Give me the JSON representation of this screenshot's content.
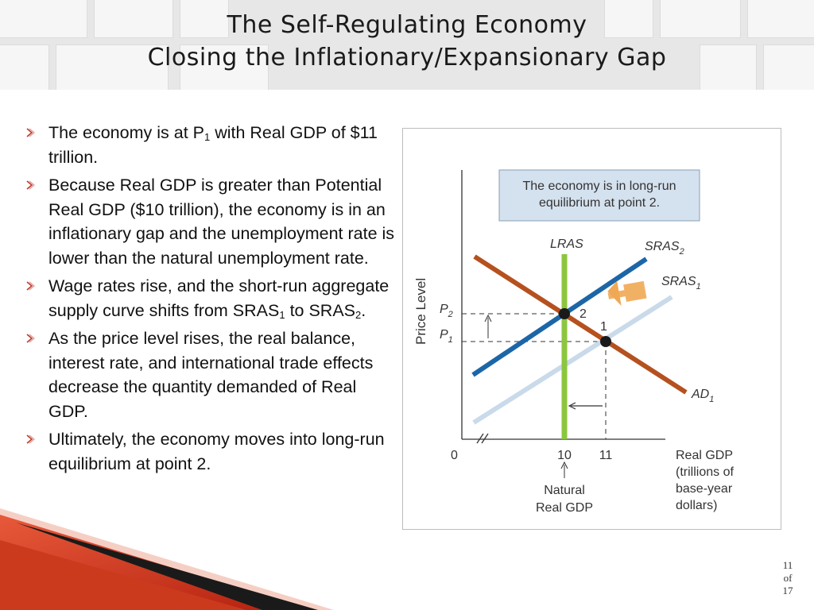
{
  "title": {
    "line1": "The Self-Regulating Economy",
    "line2": "Closing the Inflationary/Expansionary Gap"
  },
  "bullets": [
    {
      "parts": [
        "The economy is at P",
        "1",
        " with Real GDP of $11 trillion."
      ]
    },
    {
      "text": "Because Real GDP is greater than Potential Real GDP ($10 trillion), the economy is in an inflationary gap and the unemployment rate is lower than the natural unemployment rate."
    },
    {
      "parts": [
        "Wage rates rise, and the short-run aggregate supply curve shifts from SRAS",
        "1",
        " to SRAS",
        "2",
        "."
      ]
    },
    {
      "text": "As the price level rises, the real balance, interest rate, and international trade effects decrease the quantity demanded of Real GDP."
    },
    {
      "text": "Ultimately, the economy moves into long-run equilibrium at point 2."
    }
  ],
  "diagram": {
    "callout": "The economy is in long-run equilibrium at point 2.",
    "y_axis_label": "Price Level",
    "x_axis_label": "Real GDP (trillions of base-year dollars)",
    "origin": "0",
    "x_ticks": [
      "10",
      "11"
    ],
    "y_ticks": [
      "P",
      "P"
    ],
    "y_tick_subs": [
      "2",
      "1"
    ],
    "curves": {
      "lras": "LRAS",
      "sras2": "SRAS",
      "sras2_sub": "2",
      "sras1": "SRAS",
      "sras1_sub": "1",
      "ad1": "AD",
      "ad1_sub": "1"
    },
    "points": [
      "1",
      "2"
    ],
    "natural_gdp_label": "Natural Real GDP",
    "colors": {
      "ad": "#b5511f",
      "sras2": "#1c66a8",
      "sras1": "#c9daea",
      "lras": "#8cc63f",
      "callout_bg": "#d4e1ee",
      "shift_arrow": "#f0a854"
    }
  },
  "page": {
    "current": "11",
    "of": "of",
    "total": "17"
  }
}
